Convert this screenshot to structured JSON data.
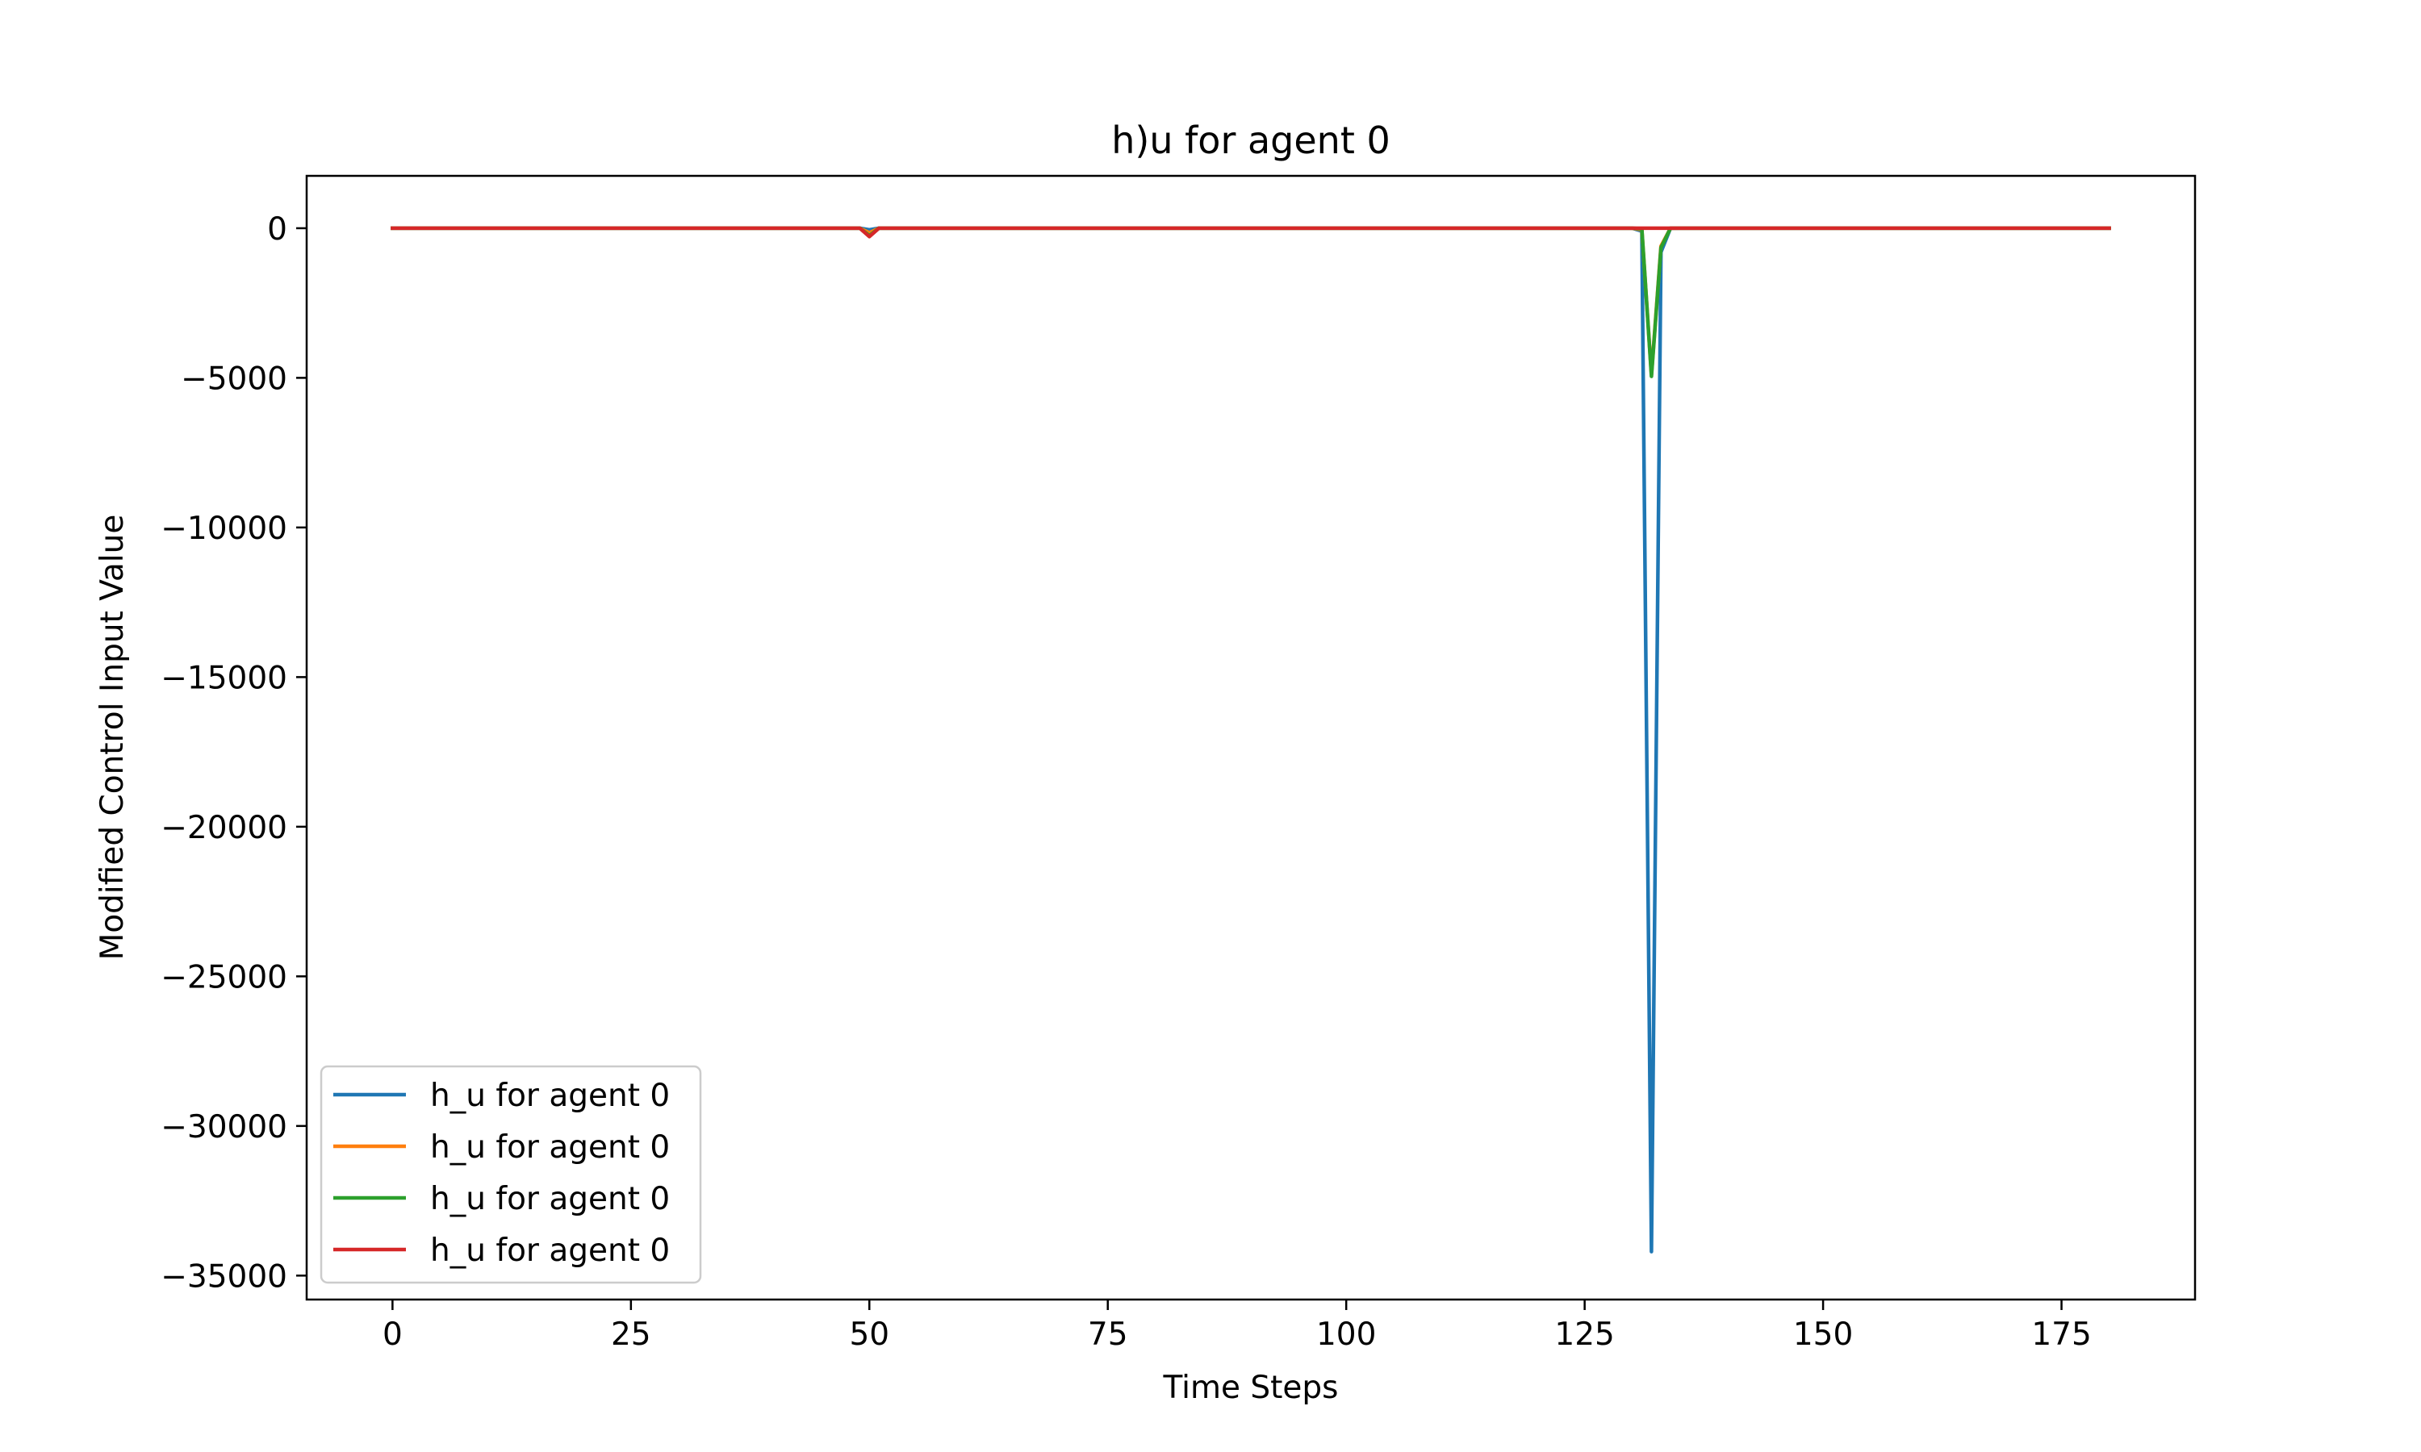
{
  "chart_data": {
    "type": "line",
    "title": "h)u for agent 0",
    "xlabel": "Time Steps",
    "ylabel": "Modified Control Input Value",
    "xlim": [
      -9,
      189
    ],
    "ylim": [
      -35800,
      1750
    ],
    "xticks": [
      0,
      25,
      50,
      75,
      100,
      125,
      150,
      175
    ],
    "yticks": [
      0,
      -5000,
      -10000,
      -15000,
      -20000,
      -25000,
      -30000,
      -35000
    ],
    "xtick_labels": [
      "0",
      "25",
      "50",
      "75",
      "100",
      "125",
      "150",
      "175"
    ],
    "ytick_labels": [
      "0",
      "−5000",
      "−10000",
      "−15000",
      "−20000",
      "−25000",
      "−30000",
      "−35000"
    ],
    "grid": false,
    "legend_position": "lower-left",
    "series": [
      {
        "name": "h_u for agent 0",
        "color": "#1f77b4",
        "x": [
          0,
          49,
          50,
          51,
          130,
          131,
          132,
          133,
          134,
          180
        ],
        "y": [
          0,
          0,
          -50,
          0,
          0,
          -100,
          -34200,
          -800,
          0,
          0
        ]
      },
      {
        "name": "h_u for agent 0",
        "color": "#ff7f0e",
        "x": [
          0,
          49,
          50,
          51,
          130,
          131,
          132,
          133,
          134,
          180
        ],
        "y": [
          0,
          0,
          -150,
          0,
          0,
          -50,
          -4900,
          -600,
          0,
          0
        ]
      },
      {
        "name": "h_u for agent 0",
        "color": "#2ca02c",
        "x": [
          0,
          49,
          50,
          51,
          130,
          131,
          132,
          133,
          134,
          180
        ],
        "y": [
          0,
          0,
          -250,
          0,
          0,
          -20,
          -4950,
          -650,
          0,
          0
        ]
      },
      {
        "name": "h_u for agent 0",
        "color": "#d62728",
        "x": [
          0,
          49,
          50,
          51,
          180
        ],
        "y": [
          0,
          0,
          -280,
          0,
          0
        ]
      }
    ]
  }
}
